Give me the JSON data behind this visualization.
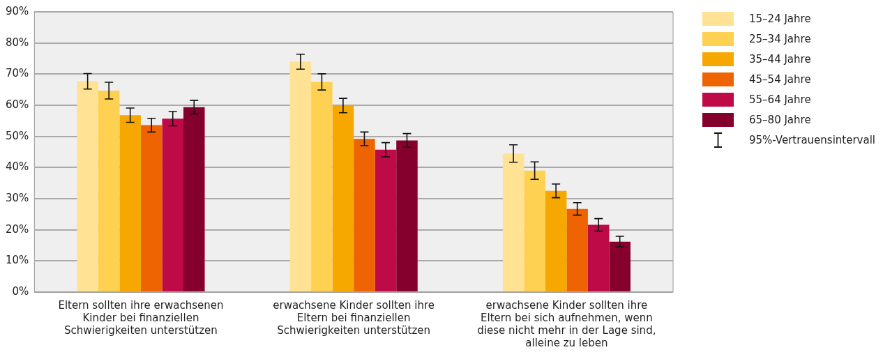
{
  "chart_data": {
    "type": "bar",
    "categories": [
      "Eltern sollten ihre erwachsenen Kinder bei finanziellen Schwierigkeiten unterstützen",
      "erwachsene Kinder sollten ihre Eltern bei finanziellen Schwierigkeiten unterstützen",
      "erwachsene Kinder sollten ihre Eltern bei sich aufnehmen, wenn diese nicht mehr in der Lage sind, alleine zu leben"
    ],
    "series": [
      {
        "name": "15–24 Jahre",
        "color": "#ffe293",
        "values": [
          67.7,
          74.0,
          44.5
        ],
        "errors": [
          2.5,
          2.4,
          2.8
        ]
      },
      {
        "name": "25–34 Jahre",
        "color": "#ffd152",
        "values": [
          64.7,
          67.5,
          39.0
        ],
        "errors": [
          2.7,
          2.6,
          2.8
        ]
      },
      {
        "name": "35–44 Jahre",
        "color": "#f7a800",
        "values": [
          56.8,
          59.9,
          32.5
        ],
        "errors": [
          2.3,
          2.3,
          2.2
        ]
      },
      {
        "name": "45–54 Jahre",
        "color": "#ee6402",
        "values": [
          53.6,
          49.2,
          26.7
        ],
        "errors": [
          2.2,
          2.2,
          2.0
        ]
      },
      {
        "name": "55–64 Jahre",
        "color": "#be0a46",
        "values": [
          55.7,
          45.7,
          21.6
        ],
        "errors": [
          2.3,
          2.3,
          2.0
        ]
      },
      {
        "name": "65–80 Jahre",
        "color": "#85002d",
        "values": [
          59.4,
          48.7,
          16.2
        ],
        "errors": [
          2.2,
          2.2,
          1.7
        ]
      }
    ],
    "ylim": [
      0,
      90
    ],
    "yticks": [
      {
        "value": 0,
        "label": "0%"
      },
      {
        "value": 10,
        "label": "10%"
      },
      {
        "value": 20,
        "label": "20%"
      },
      {
        "value": 30,
        "label": "30%"
      },
      {
        "value": 40,
        "label": "40%"
      },
      {
        "value": 50,
        "label": "50%"
      },
      {
        "value": 60,
        "label": "60%"
      },
      {
        "value": 70,
        "label": "70%"
      },
      {
        "value": 80,
        "label": "80%"
      },
      {
        "value": 90,
        "label": "90%"
      }
    ],
    "grid": "y",
    "legend": "top right",
    "annotations": [
      "95%-Vertrauensintervall"
    ]
  }
}
